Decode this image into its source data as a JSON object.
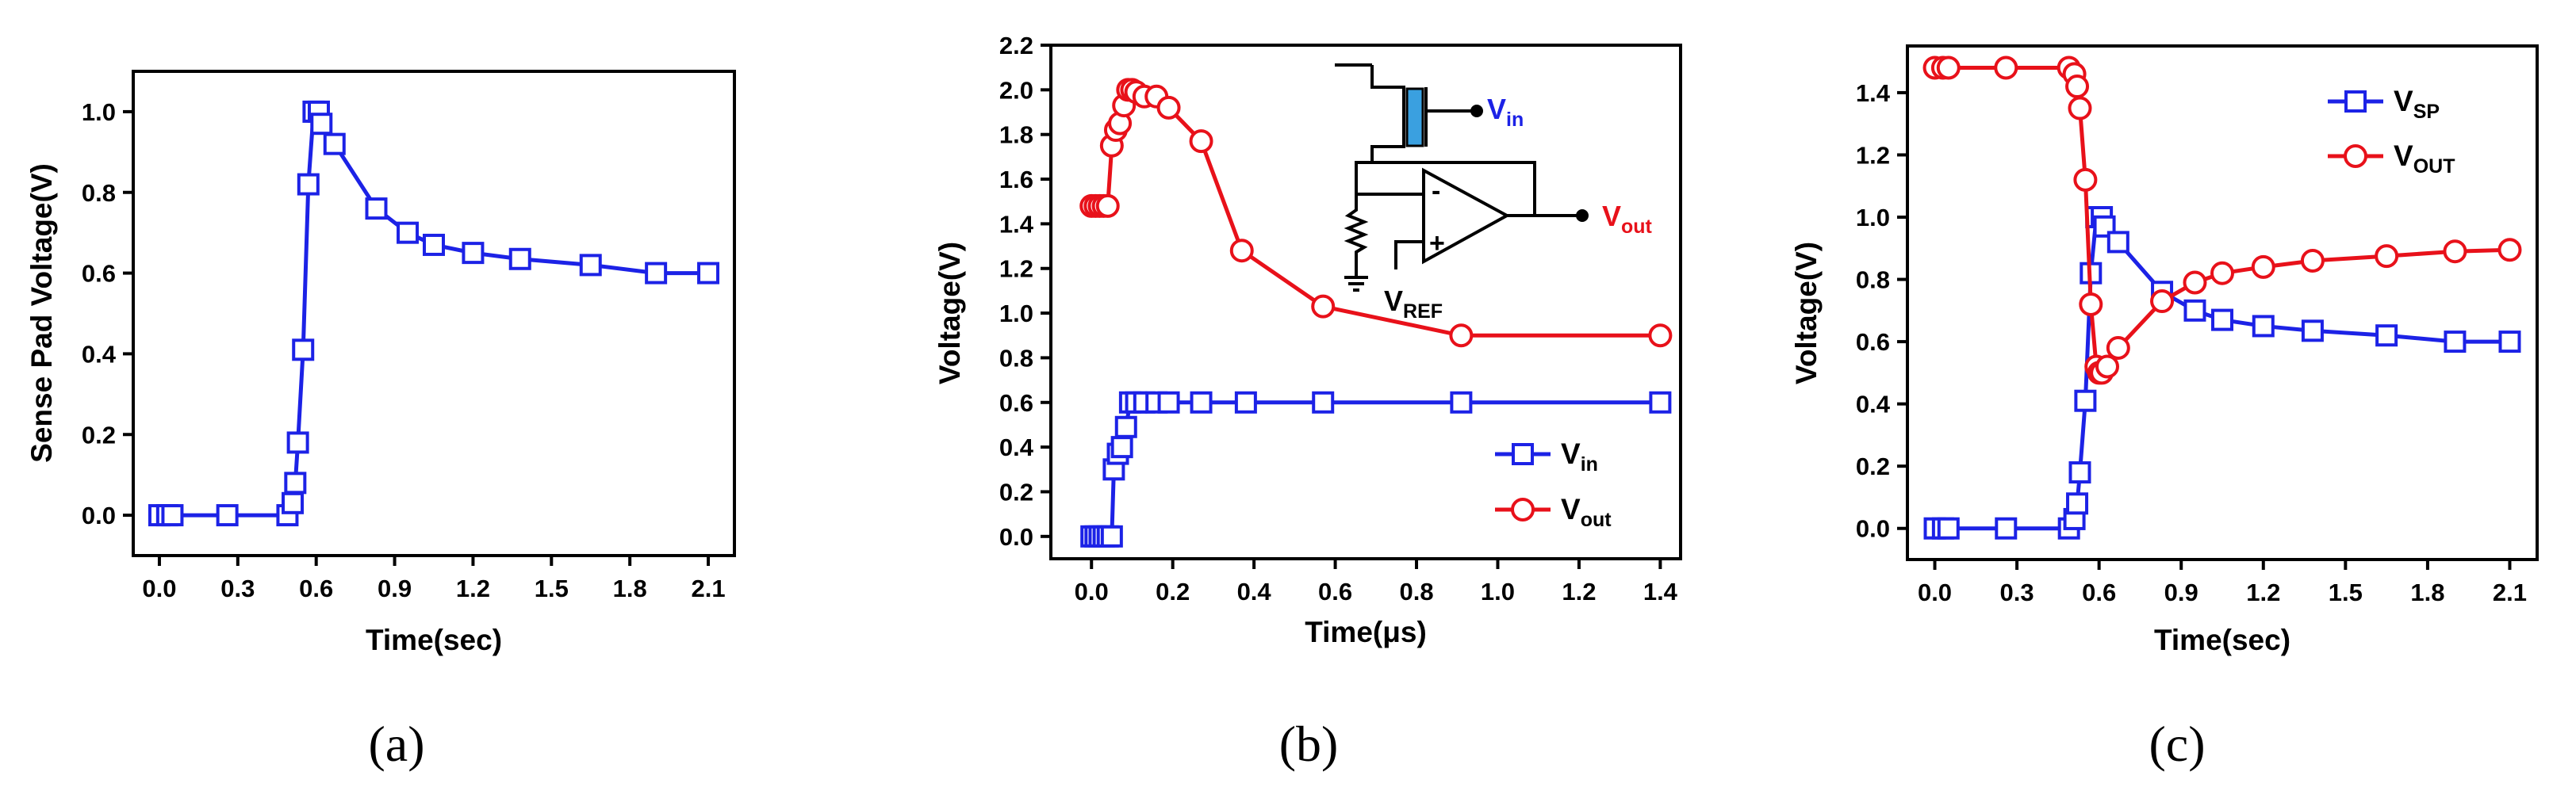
{
  "colors": {
    "blue": "#1c22e6",
    "red": "#e8111a",
    "axis": "#000000",
    "inset_cap": "#3aa0e0"
  },
  "chart_data": [
    {
      "panel": "a",
      "type": "line",
      "panel_label": "(a)",
      "title": "",
      "xlabel": "Time(sec)",
      "ylabel": "Sense Pad Voltage(V)",
      "xlim": [
        -0.1,
        2.2
      ],
      "ylim": [
        -0.1,
        1.1
      ],
      "xticks": [
        0.0,
        0.3,
        0.6,
        0.9,
        1.2,
        1.5,
        1.8,
        2.1
      ],
      "xtick_labels": [
        "0.0",
        "0.3",
        "0.6",
        "0.9",
        "1.2",
        "1.5",
        "1.8",
        "2.1"
      ],
      "yticks": [
        0.0,
        0.2,
        0.4,
        0.6,
        0.8,
        1.0
      ],
      "ytick_labels": [
        "0.0",
        "0.2",
        "0.4",
        "0.6",
        "0.8",
        "1.0"
      ],
      "series": [
        {
          "name": "Sense Pad Voltage",
          "color": "blue",
          "marker": "square",
          "x": [
            0.0,
            0.03,
            0.05,
            0.26,
            0.49,
            0.51,
            0.52,
            0.53,
            0.55,
            0.57,
            0.59,
            0.61,
            0.62,
            0.67,
            0.83,
            0.95,
            1.05,
            1.2,
            1.38,
            1.65,
            1.9,
            2.1
          ],
          "y": [
            0.0,
            0.0,
            0.0,
            0.0,
            0.0,
            0.03,
            0.08,
            0.18,
            0.41,
            0.82,
            1.0,
            1.0,
            0.97,
            0.92,
            0.76,
            0.7,
            0.67,
            0.65,
            0.635,
            0.62,
            0.6,
            0.6
          ]
        }
      ]
    },
    {
      "panel": "b",
      "type": "line",
      "panel_label": "(b)",
      "title": "",
      "xlabel": "Time(μs)",
      "ylabel": "Voltage(V)",
      "xlim": [
        -0.1,
        1.45
      ],
      "ylim": [
        -0.1,
        2.2
      ],
      "xticks": [
        0.0,
        0.2,
        0.4,
        0.6,
        0.8,
        1.0,
        1.2,
        1.4
      ],
      "xtick_labels": [
        "0.0",
        "0.2",
        "0.4",
        "0.6",
        "0.8",
        "1.0",
        "1.2",
        "1.4"
      ],
      "yticks": [
        0.0,
        0.2,
        0.4,
        0.6,
        0.8,
        1.0,
        1.2,
        1.4,
        1.6,
        1.8,
        2.0,
        2.2
      ],
      "ytick_labels": [
        "0.0",
        "0.2",
        "0.4",
        "0.6",
        "0.8",
        "1.0",
        "1.2",
        "1.4",
        "1.6",
        "1.8",
        "2.0",
        "2.2"
      ],
      "legend": {
        "position": "bottom-right"
      },
      "series": [
        {
          "name": "V",
          "sub": "in",
          "color": "blue",
          "marker": "square",
          "x": [
            0.0,
            0.01,
            0.02,
            0.03,
            0.04,
            0.05,
            0.055,
            0.065,
            0.075,
            0.085,
            0.095,
            0.11,
            0.13,
            0.16,
            0.19,
            0.27,
            0.38,
            0.57,
            0.91,
            1.4
          ],
          "y": [
            0.0,
            0.0,
            0.0,
            0.0,
            0.0,
            0.0,
            0.3,
            0.37,
            0.4,
            0.49,
            0.6,
            0.6,
            0.6,
            0.6,
            0.6,
            0.6,
            0.6,
            0.6,
            0.6,
            0.6
          ]
        },
        {
          "name": "V",
          "sub": "out",
          "color": "red",
          "marker": "circle",
          "x": [
            0.0,
            0.01,
            0.02,
            0.03,
            0.04,
            0.05,
            0.06,
            0.07,
            0.08,
            0.09,
            0.1,
            0.11,
            0.13,
            0.16,
            0.19,
            0.27,
            0.37,
            0.57,
            0.91,
            1.4
          ],
          "y": [
            1.48,
            1.48,
            1.48,
            1.48,
            1.48,
            1.75,
            1.82,
            1.85,
            1.93,
            2.0,
            2.0,
            1.99,
            1.97,
            1.97,
            1.92,
            1.77,
            1.28,
            1.03,
            0.9,
            0.9
          ]
        }
      ],
      "inset": {
        "type": "circuit-diagram",
        "labels": [
          "V",
          "in",
          "V",
          "out",
          "V",
          "REF",
          "-",
          "+"
        ]
      }
    },
    {
      "panel": "c",
      "type": "line",
      "panel_label": "(c)",
      "title": "",
      "xlabel": "Time(sec)",
      "ylabel": "Voltage(V)",
      "xlim": [
        -0.1,
        2.2
      ],
      "ylim": [
        -0.1,
        1.55
      ],
      "xticks": [
        0.0,
        0.3,
        0.6,
        0.9,
        1.2,
        1.5,
        1.8,
        2.1
      ],
      "xtick_labels": [
        "0.0",
        "0.3",
        "0.6",
        "0.9",
        "1.2",
        "1.5",
        "1.8",
        "2.1"
      ],
      "yticks": [
        0.0,
        0.2,
        0.4,
        0.6,
        0.8,
        1.0,
        1.2,
        1.4
      ],
      "ytick_labels": [
        "0.0",
        "0.2",
        "0.4",
        "0.6",
        "0.8",
        "1.0",
        "1.2",
        "1.4"
      ],
      "legend": {
        "position": "top-right"
      },
      "series": [
        {
          "name": "V",
          "sub": "SP",
          "color": "blue",
          "marker": "square",
          "x": [
            0.0,
            0.03,
            0.05,
            0.26,
            0.49,
            0.51,
            0.52,
            0.53,
            0.55,
            0.57,
            0.59,
            0.61,
            0.62,
            0.67,
            0.83,
            0.95,
            1.05,
            1.2,
            1.38,
            1.65,
            1.9,
            2.1
          ],
          "y": [
            0.0,
            0.0,
            0.0,
            0.0,
            0.0,
            0.03,
            0.08,
            0.18,
            0.41,
            0.82,
            1.0,
            1.0,
            0.97,
            0.92,
            0.76,
            0.7,
            0.67,
            0.65,
            0.635,
            0.62,
            0.6,
            0.6
          ]
        },
        {
          "name": "V",
          "sub": "OUT",
          "color": "red",
          "marker": "circle",
          "x": [
            0.0,
            0.03,
            0.05,
            0.26,
            0.49,
            0.51,
            0.52,
            0.53,
            0.55,
            0.57,
            0.59,
            0.6,
            0.61,
            0.63,
            0.67,
            0.83,
            0.95,
            1.05,
            1.2,
            1.38,
            1.65,
            1.9,
            2.1
          ],
          "y": [
            1.48,
            1.48,
            1.48,
            1.48,
            1.48,
            1.46,
            1.42,
            1.35,
            1.12,
            0.72,
            0.52,
            0.5,
            0.5,
            0.52,
            0.58,
            0.73,
            0.79,
            0.82,
            0.84,
            0.86,
            0.875,
            0.89,
            0.895
          ]
        }
      ]
    }
  ]
}
